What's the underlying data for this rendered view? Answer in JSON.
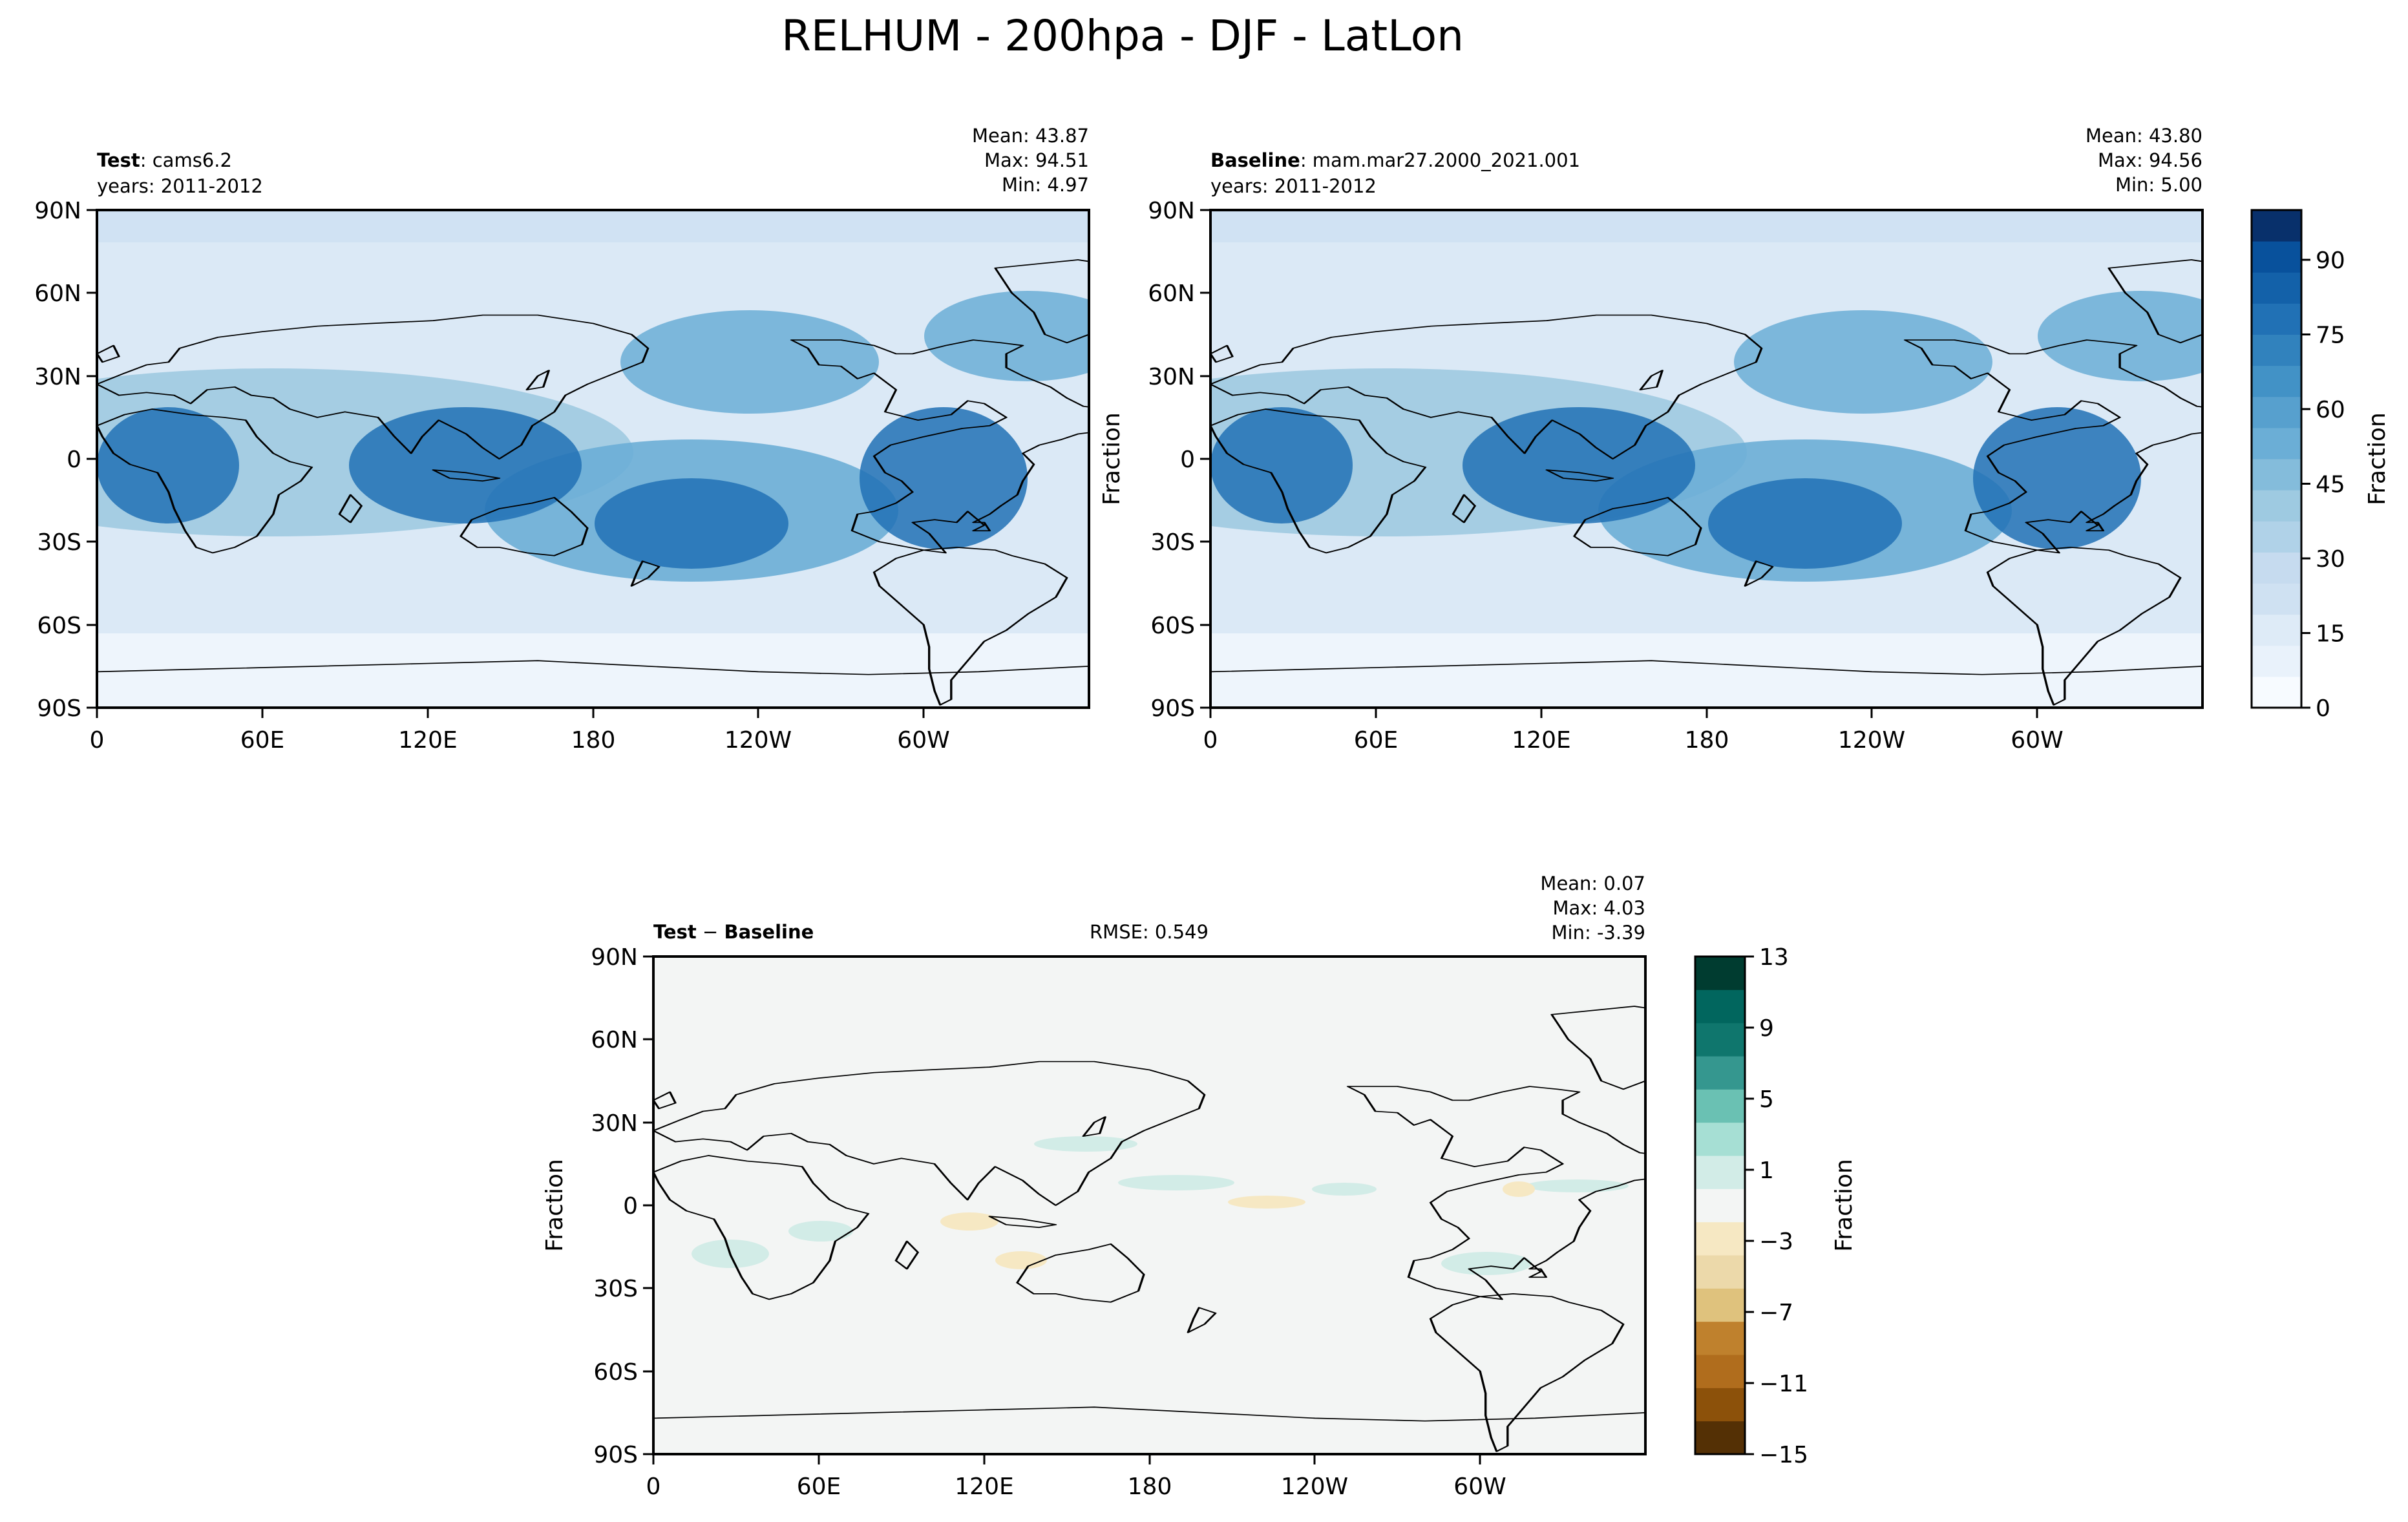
{
  "figure": {
    "title": "RELHUM - 200hpa - DJF - LatLon"
  },
  "chart_data": [
    {
      "type": "heatmap",
      "panel": "test",
      "label_bold": "Test",
      "label_rest": ": cams6.2",
      "years": "years: 2011-2012",
      "stats": {
        "mean": "Mean: 43.87",
        "max": "Max: 94.51",
        "min": "Min:  4.97"
      },
      "x_ticks": [
        "0",
        "60E",
        "120E",
        "180",
        "120W",
        "60W"
      ],
      "y_ticks": [
        "90N",
        "60N",
        "30N",
        "0",
        "30S",
        "60S",
        "90S"
      ],
      "ylabel": "",
      "xlim": [
        0,
        360
      ],
      "ylim": [
        -90,
        90
      ],
      "colormap": "Blues",
      "clim": [
        0,
        100
      ]
    },
    {
      "type": "heatmap",
      "panel": "baseline",
      "label_bold": "Baseline",
      "label_rest": ": mam.mar27.2000_2021.001",
      "years": "years: 2011-2012",
      "stats": {
        "mean": "Mean: 43.80",
        "max": "Max: 94.56",
        "min": "Min:  5.00"
      },
      "x_ticks": [
        "0",
        "60E",
        "120E",
        "180",
        "120W",
        "60W"
      ],
      "y_ticks": [
        "90N",
        "60N",
        "30N",
        "0",
        "30S",
        "60S",
        "90S"
      ],
      "ylabel": "Fraction",
      "xlim": [
        0,
        360
      ],
      "ylim": [
        -90,
        90
      ],
      "colormap": "Blues",
      "clim": [
        0,
        100
      ],
      "colorbar": {
        "label": "Fraction",
        "ticks": [
          "0",
          "15",
          "30",
          "45",
          "60",
          "75",
          "90"
        ]
      }
    },
    {
      "type": "heatmap",
      "panel": "difference",
      "label_bold": "Test",
      "label_mid": " − ",
      "label_bold2": "Baseline",
      "rmse": "RMSE: 0.549",
      "stats": {
        "mean": "Mean:  0.07",
        "max": "Max:  4.03",
        "min": "Min: -3.39"
      },
      "x_ticks": [
        "0",
        "60E",
        "120E",
        "180",
        "120W",
        "60W"
      ],
      "y_ticks": [
        "90N",
        "60N",
        "30N",
        "0",
        "30S",
        "60S",
        "90S"
      ],
      "ylabel": "Fraction",
      "xlim": [
        0,
        360
      ],
      "ylim": [
        -90,
        90
      ],
      "colormap": "BrBG",
      "clim": [
        -15,
        13
      ],
      "colorbar": {
        "label": "Fraction",
        "ticks": [
          "13",
          "9",
          "5",
          "1",
          "−3",
          "−7",
          "−11",
          "−15"
        ]
      }
    }
  ],
  "colors": {
    "blues": [
      "#f7fbff",
      "#e9f2fb",
      "#deebf7",
      "#cfe1f2",
      "#c6dbef",
      "#b0d2e8",
      "#9ecae1",
      "#84bcdb",
      "#6baed6",
      "#57a0ce",
      "#4292c6",
      "#3182bd",
      "#2171b5",
      "#1361a9",
      "#08519c",
      "#08306b"
    ],
    "brbg": [
      "#543005",
      "#8c510a",
      "#b06d1d",
      "#bf812d",
      "#dfc27d",
      "#ecd9aa",
      "#f6e8c3",
      "#f3f5f4",
      "#d2ece7",
      "#a6dfd4",
      "#6ac1b3",
      "#35978f",
      "#0f766d",
      "#01665e",
      "#003c30"
    ],
    "diff_background": "#f3f5f4",
    "coast": "#000000"
  }
}
